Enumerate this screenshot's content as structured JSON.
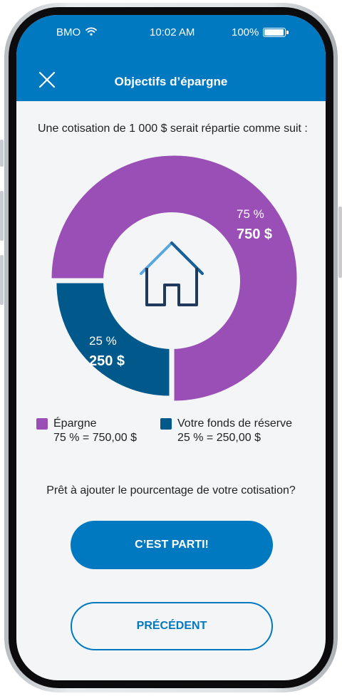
{
  "status_bar": {
    "carrier": "BMO",
    "time": "10:02 AM",
    "battery": "100%"
  },
  "header": {
    "title": "Objectifs d’épargne",
    "close_icon": "close-icon"
  },
  "intro": "Une cotisation de 1 000 $ serait répartie comme suit :",
  "chart_data": {
    "type": "pie",
    "categories": [
      "Épargne",
      "Votre fonds de réserve"
    ],
    "values": [
      75,
      25
    ],
    "colors": [
      "#9a4fb7",
      "#00598a"
    ],
    "slice_labels": [
      {
        "percent": "75 %",
        "amount": "750 $"
      },
      {
        "percent": "25 %",
        "amount": "250 $"
      }
    ],
    "center_icon": "house-icon"
  },
  "legend": [
    {
      "label": "Épargne",
      "value": "75 % = 750,00 $",
      "color": "#9a4fb7"
    },
    {
      "label": "Votre fonds de réserve",
      "value": "25 % = 250,00 $",
      "color": "#00598a"
    }
  ],
  "question": "Prêt à ajouter le pourcentage de votre cotisation?",
  "buttons": {
    "primary": "C’EST PARTI!",
    "secondary": "PRÉCÉDENT"
  }
}
